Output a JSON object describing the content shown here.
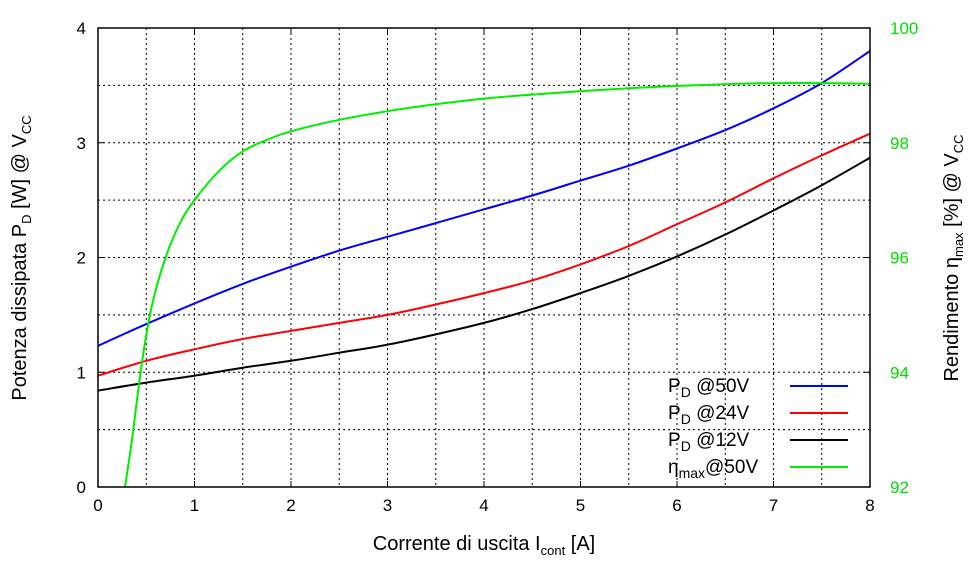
{
  "chart_data": {
    "type": "line",
    "xlabel": {
      "main": "Corrente di uscita I",
      "sub": "cont",
      "tail": " [A]"
    },
    "ylabel_left": {
      "main": "Potenza dissipata P",
      "sub": "D",
      "mid": " [W] @ V",
      "sub2": "CC"
    },
    "ylabel_right": {
      "main": "Rendimento η",
      "sub": "max",
      "mid": " [%] @ V",
      "sub2": "CC"
    },
    "xlim": [
      0,
      8
    ],
    "ylim_left": [
      0,
      4
    ],
    "ylim_right": [
      92,
      100
    ],
    "x_ticks": [
      "0",
      "1",
      "2",
      "3",
      "4",
      "5",
      "6",
      "7",
      "8"
    ],
    "y_ticks_left": [
      "0",
      "1",
      "2",
      "3",
      "4"
    ],
    "y_ticks_right": [
      "92",
      "94",
      "96",
      "98",
      "100"
    ],
    "grid": true,
    "legend_position": "bottom-right",
    "colors": {
      "right_axis": "#00dd00"
    },
    "series": [
      {
        "name": "P_D @50V",
        "legend": {
          "main": "P",
          "sub": "D",
          "tail": "  @50V"
        },
        "color": "#0000ff",
        "axis": "left",
        "x": [
          0,
          0.5,
          1,
          1.5,
          2,
          2.5,
          3,
          3.5,
          4,
          4.5,
          5,
          5.5,
          6,
          6.5,
          7,
          7.5,
          8
        ],
        "y": [
          1.23,
          1.42,
          1.6,
          1.77,
          1.92,
          2.06,
          2.18,
          2.3,
          2.42,
          2.54,
          2.67,
          2.8,
          2.95,
          3.11,
          3.3,
          3.52,
          3.8
        ]
      },
      {
        "name": "P_D @24V",
        "legend": {
          "main": "P",
          "sub": "D",
          "tail": "  @24V"
        },
        "color": "#ff0000",
        "axis": "left",
        "x": [
          0,
          0.5,
          1,
          1.5,
          2,
          2.5,
          3,
          3.5,
          4,
          4.5,
          5,
          5.5,
          6,
          6.5,
          7,
          7.5,
          8
        ],
        "y": [
          0.97,
          1.1,
          1.2,
          1.29,
          1.36,
          1.43,
          1.5,
          1.59,
          1.69,
          1.8,
          1.94,
          2.1,
          2.29,
          2.48,
          2.69,
          2.89,
          3.08
        ]
      },
      {
        "name": "P_D @12V",
        "legend": {
          "main": "P",
          "sub": "D",
          "tail": "  @12V"
        },
        "color": "#000000",
        "axis": "left",
        "x": [
          0,
          0.5,
          1,
          1.5,
          2,
          2.5,
          3,
          3.5,
          4,
          4.5,
          5,
          5.5,
          6,
          6.5,
          7,
          7.5,
          8
        ],
        "y": [
          0.84,
          0.91,
          0.97,
          1.04,
          1.1,
          1.17,
          1.24,
          1.33,
          1.43,
          1.55,
          1.69,
          1.84,
          2.01,
          2.2,
          2.41,
          2.63,
          2.87
        ]
      },
      {
        "name": "η_max @50V",
        "legend": {
          "main": "η",
          "sub": "max",
          "tail": "@50V"
        },
        "color": "#00ee00",
        "axis": "right",
        "x": [
          0.28,
          0.35,
          0.45,
          0.55,
          0.7,
          0.85,
          1,
          1.25,
          1.5,
          1.75,
          2,
          2.5,
          3,
          3.5,
          4,
          4.5,
          5,
          5.5,
          6,
          6.5,
          7,
          7.5,
          8
        ],
        "y": [
          92,
          92.8,
          94.1,
          95.1,
          96.0,
          96.6,
          97.0,
          97.5,
          97.85,
          98.05,
          98.2,
          98.4,
          98.55,
          98.67,
          98.77,
          98.84,
          98.9,
          98.95,
          98.99,
          99.02,
          99.04,
          99.04,
          99.03
        ]
      }
    ]
  }
}
